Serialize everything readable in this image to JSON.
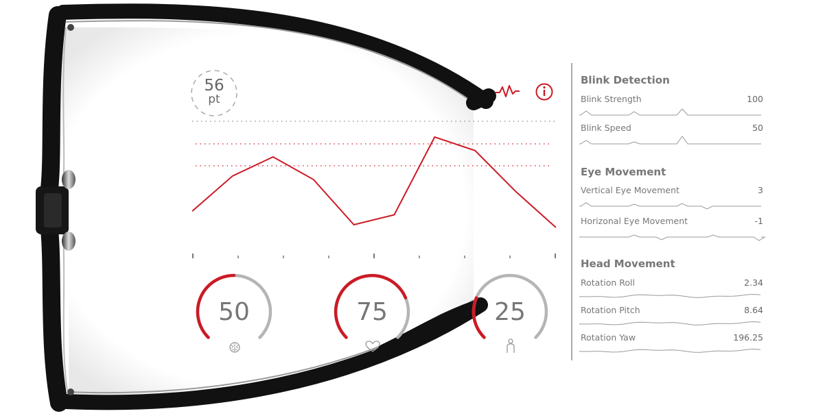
{
  "badge": {
    "value": "56",
    "unit": "pt"
  },
  "icons": {
    "activity": "activity-icon",
    "info": "info-icon"
  },
  "colors": {
    "accent": "#cc1a25",
    "muted": "#b5b5b5",
    "text": "#777777",
    "frame": "#111111"
  },
  "graph": {
    "series": [
      0.82,
      0.43,
      0.22,
      0.47,
      0.97,
      0.86,
      0.0,
      0.15,
      0.6,
      1.0
    ]
  },
  "gauges": [
    {
      "value": "50",
      "fill": 0.5,
      "icon": "brain-icon"
    },
    {
      "value": "75",
      "fill": 0.75,
      "icon": "heart-icon"
    },
    {
      "value": "25",
      "fill": 0.25,
      "icon": "person-icon"
    }
  ],
  "panel": {
    "sections": [
      {
        "title": "Blink Detection",
        "rows": [
          {
            "label": "Blink Strength",
            "value": "100"
          },
          {
            "label": "Blink Speed",
            "value": "50"
          }
        ]
      },
      {
        "title": "Eye Movement",
        "rows": [
          {
            "label": "Vertical Eye Movement",
            "value": "3"
          },
          {
            "label": "Horizonal Eye Movement",
            "value": "-1"
          }
        ]
      },
      {
        "title": "Head Movement",
        "rows": [
          {
            "label": "Rotation Roll",
            "value": "2.34"
          },
          {
            "label": "Rotation Pitch",
            "value": "8.64"
          },
          {
            "label": "Rotation Yaw",
            "value": "196.25"
          }
        ]
      }
    ]
  }
}
